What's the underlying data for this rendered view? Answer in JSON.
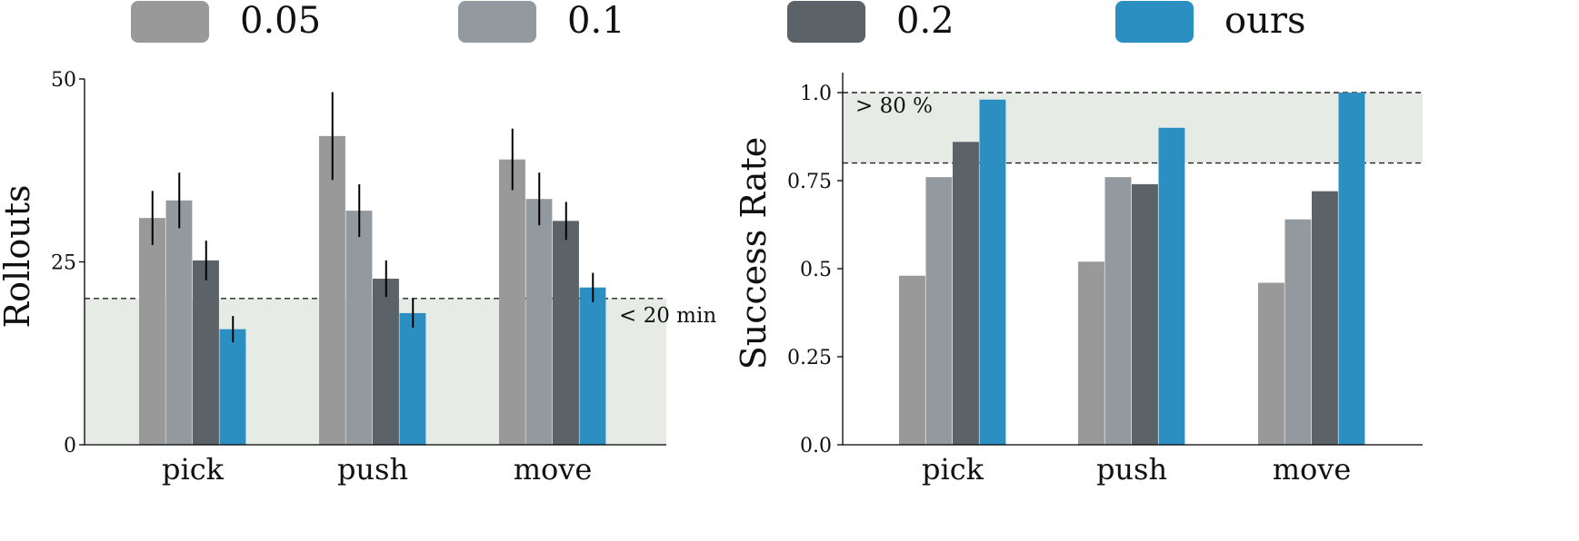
{
  "legend": {
    "entries": [
      {
        "label": "0.05",
        "color": "#999999"
      },
      {
        "label": "0.1",
        "color": "#939a9f"
      },
      {
        "label": "0.2",
        "color": "#5b6268"
      },
      {
        "label": "ours",
        "color": "#2b8fc1"
      }
    ]
  },
  "chart_data": [
    {
      "type": "bar",
      "categories": [
        "pick",
        "push",
        "move"
      ],
      "series": [
        {
          "name": "0.05",
          "values": [
            31,
            42.2,
            39
          ],
          "err": [
            3.7,
            6,
            4.2
          ]
        },
        {
          "name": "0.1",
          "values": [
            33.4,
            32,
            33.6
          ],
          "err": [
            3.8,
            3.6,
            3.6
          ]
        },
        {
          "name": "0.2",
          "values": [
            25.2,
            22.7,
            30.6
          ],
          "err": [
            2.7,
            2.5,
            2.6
          ]
        },
        {
          "name": "ours",
          "values": [
            15.8,
            18,
            21.5
          ],
          "err": [
            1.8,
            2,
            2
          ]
        }
      ],
      "ylabel": "Rollouts",
      "ylim": [
        0,
        50
      ],
      "yticks": [
        "0",
        "25",
        "50"
      ],
      "threshold": {
        "value": 20,
        "label": "< 20 min",
        "region": "below"
      },
      "shaded_color": "#e6ebe6"
    },
    {
      "type": "bar",
      "categories": [
        "pick",
        "push",
        "move"
      ],
      "series": [
        {
          "name": "0.05",
          "values": [
            0.48,
            0.52,
            0.46
          ]
        },
        {
          "name": "0.1",
          "values": [
            0.76,
            0.76,
            0.64
          ]
        },
        {
          "name": "0.2",
          "values": [
            0.86,
            0.74,
            0.72
          ]
        },
        {
          "name": "ours",
          "values": [
            0.98,
            0.9,
            1.0
          ]
        }
      ],
      "ylabel": "Success Rate",
      "ylim": [
        0,
        1.05
      ],
      "yticks": [
        "0.0",
        "0.25",
        "0.5",
        "0.75",
        "1.0"
      ],
      "threshold": {
        "upper": 1.0,
        "lower": 0.8,
        "label": "> 80 %",
        "region": "between"
      },
      "shaded_color": "#e6ebe6"
    }
  ]
}
